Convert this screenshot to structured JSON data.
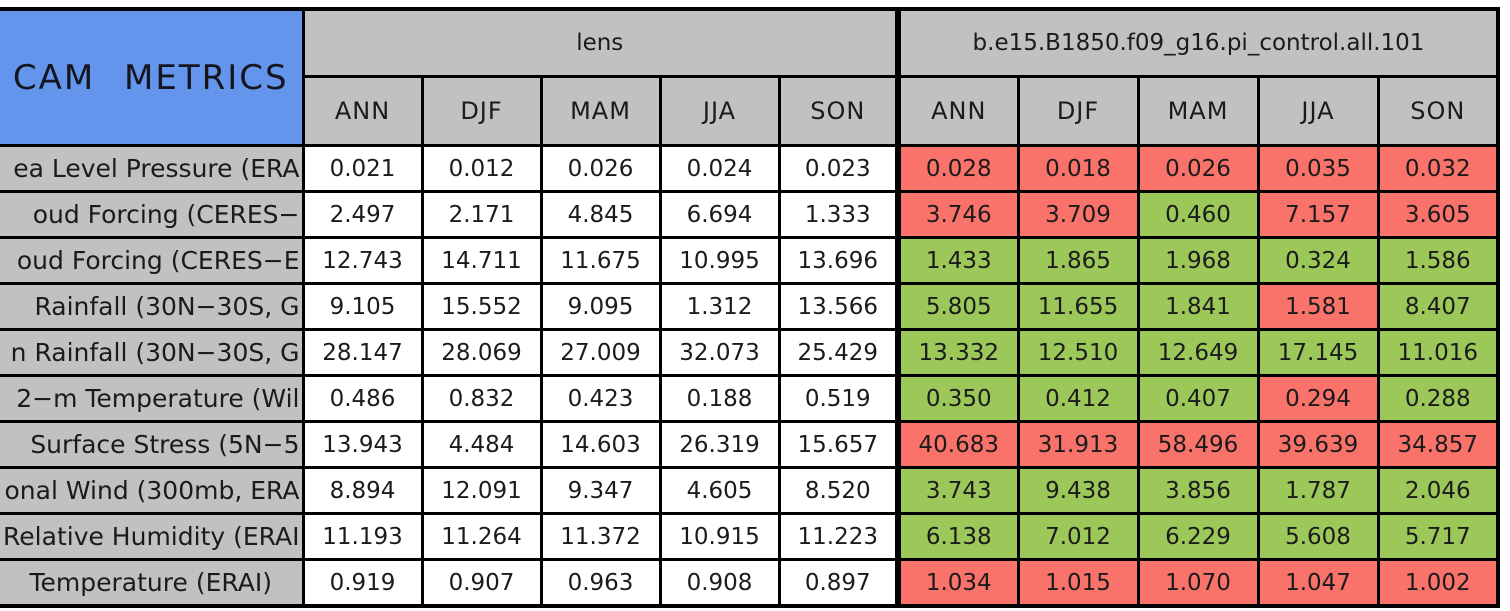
{
  "palette": {
    "title_bg": "#6495ED",
    "header_bg": "#C1C1C1",
    "value_bg": "#FFFFFF",
    "border": "#000000",
    "status_better": "#9CC85A",
    "status_worse": "#F9736B"
  },
  "chart_data": {
    "type": "table",
    "title": "CAM METRICS",
    "groups": [
      {
        "key": "lens",
        "label": "lens"
      },
      {
        "key": "control",
        "label": "b.e15.B1850.f09_g16.pi_control.all.101"
      }
    ],
    "seasons": [
      "ANN",
      "DJF",
      "MAM",
      "JJA",
      "SON"
    ],
    "status_legend": {
      "better": "green cell (lower error than lens)",
      "worse": "red cell (higher error than lens)"
    },
    "rows": [
      {
        "label": "ea Level Pressure (ERA",
        "lens": [
          "0.021",
          "0.012",
          "0.026",
          "0.024",
          "0.023"
        ],
        "control": [
          "0.028",
          "0.018",
          "0.026",
          "0.035",
          "0.032"
        ],
        "control_status": [
          "worse",
          "worse",
          "worse",
          "worse",
          "worse"
        ]
      },
      {
        "label": "oud Forcing (CERES−",
        "lens": [
          "2.497",
          "2.171",
          "4.845",
          "6.694",
          "1.333"
        ],
        "control": [
          "3.746",
          "3.709",
          "0.460",
          "7.157",
          "3.605"
        ],
        "control_status": [
          "worse",
          "worse",
          "better",
          "worse",
          "worse"
        ]
      },
      {
        "label": "oud Forcing (CERES−E",
        "lens": [
          "12.743",
          "14.711",
          "11.675",
          "10.995",
          "13.696"
        ],
        "control": [
          "1.433",
          "1.865",
          "1.968",
          "0.324",
          "1.586"
        ],
        "control_status": [
          "better",
          "better",
          "better",
          "better",
          "better"
        ]
      },
      {
        "label": "Rainfall (30N−30S, G",
        "lens": [
          "9.105",
          "15.552",
          "9.095",
          "1.312",
          "13.566"
        ],
        "control": [
          "5.805",
          "11.655",
          "1.841",
          "1.581",
          "8.407"
        ],
        "control_status": [
          "better",
          "better",
          "better",
          "worse",
          "better"
        ]
      },
      {
        "label": "n Rainfall (30N−30S, G",
        "lens": [
          "28.147",
          "28.069",
          "27.009",
          "32.073",
          "25.429"
        ],
        "control": [
          "13.332",
          "12.510",
          "12.649",
          "17.145",
          "11.016"
        ],
        "control_status": [
          "better",
          "better",
          "better",
          "better",
          "better"
        ]
      },
      {
        "label": "2−m Temperature (Wil",
        "lens": [
          "0.486",
          "0.832",
          "0.423",
          "0.188",
          "0.519"
        ],
        "control": [
          "0.350",
          "0.412",
          "0.407",
          "0.294",
          "0.288"
        ],
        "control_status": [
          "better",
          "better",
          "better",
          "worse",
          "better"
        ]
      },
      {
        "label": "Surface Stress (5N−5",
        "lens": [
          "13.943",
          "4.484",
          "14.603",
          "26.319",
          "15.657"
        ],
        "control": [
          "40.683",
          "31.913",
          "58.496",
          "39.639",
          "34.857"
        ],
        "control_status": [
          "worse",
          "worse",
          "worse",
          "worse",
          "worse"
        ]
      },
      {
        "label": "onal Wind (300mb, ERA",
        "lens": [
          "8.894",
          "12.091",
          "9.347",
          "4.605",
          "8.520"
        ],
        "control": [
          "3.743",
          "9.438",
          "3.856",
          "1.787",
          "2.046"
        ],
        "control_status": [
          "better",
          "better",
          "better",
          "better",
          "better"
        ]
      },
      {
        "label": "Relative Humidity (ERAI",
        "lens": [
          "11.193",
          "11.264",
          "11.372",
          "10.915",
          "11.223"
        ],
        "control": [
          "6.138",
          "7.012",
          "6.229",
          "5.608",
          "5.717"
        ],
        "control_status": [
          "better",
          "better",
          "better",
          "better",
          "better"
        ]
      },
      {
        "label": "Temperature (ERAI)",
        "lens": [
          "0.919",
          "0.907",
          "0.963",
          "0.908",
          "0.897"
        ],
        "control": [
          "1.034",
          "1.015",
          "1.070",
          "1.047",
          "1.002"
        ],
        "control_status": [
          "worse",
          "worse",
          "worse",
          "worse",
          "worse"
        ]
      }
    ]
  }
}
